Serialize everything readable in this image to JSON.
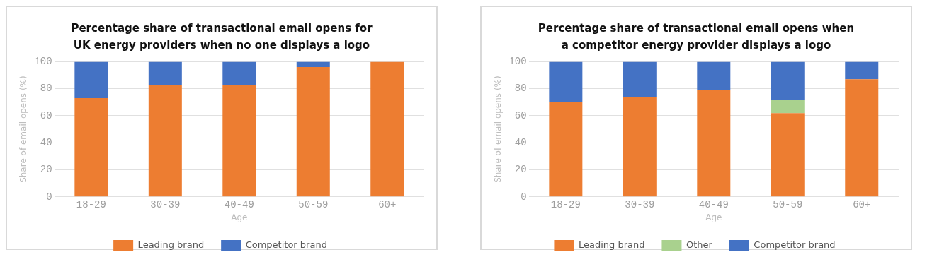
{
  "chart_data": [
    {
      "type": "bar",
      "title": "Percentage share of transactional email opens for UK energy providers when no one displays a logo",
      "xlabel": "Age",
      "ylabel": "Share of email opens (%)",
      "categories": [
        "18-29",
        "30-39",
        "40-49",
        "50-59",
        "60+"
      ],
      "stacked": true,
      "series": [
        {
          "name": "Leading brand",
          "color": "#ed7d31",
          "values": [
            73,
            83,
            83,
            96,
            100
          ]
        },
        {
          "name": "Competitor brand",
          "color": "#4472c4",
          "values": [
            27,
            17,
            17,
            4,
            0
          ]
        }
      ],
      "ylim": [
        0,
        100
      ],
      "yticks": [
        0,
        20,
        40,
        60,
        80,
        100
      ],
      "grid": "y",
      "legend": "bottom"
    },
    {
      "type": "bar",
      "title": "Percentage share of transactional email opens when a competitor energy provider displays a logo",
      "xlabel": "Age",
      "ylabel": "Share of email opens (%)",
      "categories": [
        "18-29",
        "30-39",
        "40-49",
        "50-59",
        "60+"
      ],
      "stacked": true,
      "series": [
        {
          "name": "Leading brand",
          "color": "#ed7d31",
          "values": [
            70,
            74,
            79,
            62,
            87
          ]
        },
        {
          "name": "Other",
          "color": "#a9d18e",
          "values": [
            0,
            0,
            0,
            10,
            0
          ]
        },
        {
          "name": "Competitor brand",
          "color": "#4472c4",
          "values": [
            30,
            26,
            21,
            28,
            13
          ]
        }
      ],
      "ylim": [
        0,
        100
      ],
      "yticks": [
        0,
        20,
        40,
        60,
        80,
        100
      ],
      "grid": "y",
      "legend": "bottom"
    }
  ]
}
